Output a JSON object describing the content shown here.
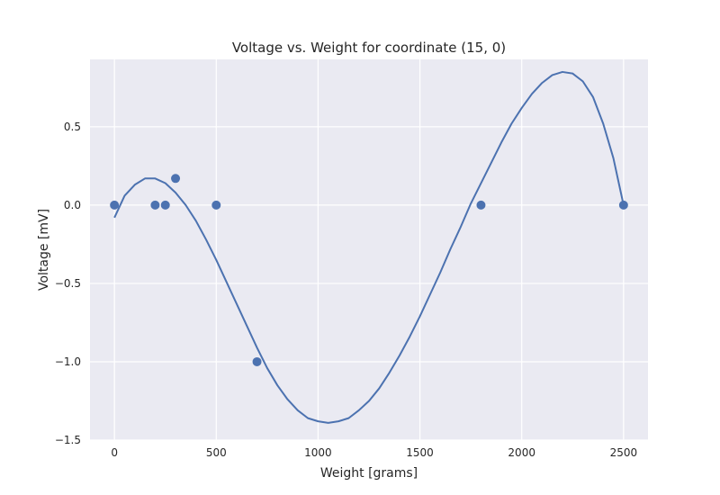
{
  "chart_data": {
    "type": "line",
    "title": "Voltage vs. Weight for coordinate (15, 0)",
    "xlabel": "Weight [grams]",
    "ylabel": "Voltage [mV]",
    "xlim": [
      -120,
      2620
    ],
    "ylim": [
      -1.5,
      0.93
    ],
    "xticks": [
      0,
      500,
      1000,
      1500,
      2000,
      2500
    ],
    "xtick_labels": [
      "0",
      "500",
      "1000",
      "1500",
      "2000",
      "2500"
    ],
    "yticks": [
      -1.5,
      -1.0,
      -0.5,
      0.0,
      0.5
    ],
    "ytick_labels": [
      "−1.5",
      "−1.0",
      "−0.5",
      "0.0",
      "0.5"
    ],
    "grid": true,
    "colors": {
      "background": "#eaeaf2",
      "grid": "#ffffff",
      "series": "#4c72b0"
    },
    "series": [
      {
        "kind": "scatter",
        "x": [
          0,
          200,
          250,
          300,
          500,
          700,
          1800,
          2500
        ],
        "y": [
          0.0,
          0.0,
          0.0,
          0.17,
          0.0,
          -1.0,
          0.0,
          0.0
        ]
      },
      {
        "kind": "line",
        "x": [
          0,
          50,
          100,
          150,
          200,
          250,
          300,
          350,
          400,
          450,
          500,
          550,
          600,
          650,
          700,
          750,
          800,
          850,
          900,
          950,
          1000,
          1050,
          1100,
          1150,
          1200,
          1250,
          1300,
          1350,
          1400,
          1450,
          1500,
          1550,
          1600,
          1650,
          1700,
          1750,
          1800,
          1850,
          1900,
          1950,
          2000,
          2050,
          2100,
          2150,
          2200,
          2250,
          2300,
          2350,
          2400,
          2450,
          2500
        ],
        "y": [
          -0.08,
          0.06,
          0.13,
          0.17,
          0.17,
          0.14,
          0.08,
          0.0,
          -0.1,
          -0.22,
          -0.35,
          -0.49,
          -0.63,
          -0.77,
          -0.91,
          -1.04,
          -1.15,
          -1.24,
          -1.31,
          -1.36,
          -1.38,
          -1.39,
          -1.38,
          -1.36,
          -1.31,
          -1.25,
          -1.17,
          -1.07,
          -0.96,
          -0.84,
          -0.71,
          -0.57,
          -0.43,
          -0.28,
          -0.14,
          0.01,
          0.14,
          0.27,
          0.4,
          0.52,
          0.62,
          0.71,
          0.78,
          0.83,
          0.85,
          0.84,
          0.79,
          0.69,
          0.52,
          0.3,
          0.0
        ]
      }
    ]
  }
}
